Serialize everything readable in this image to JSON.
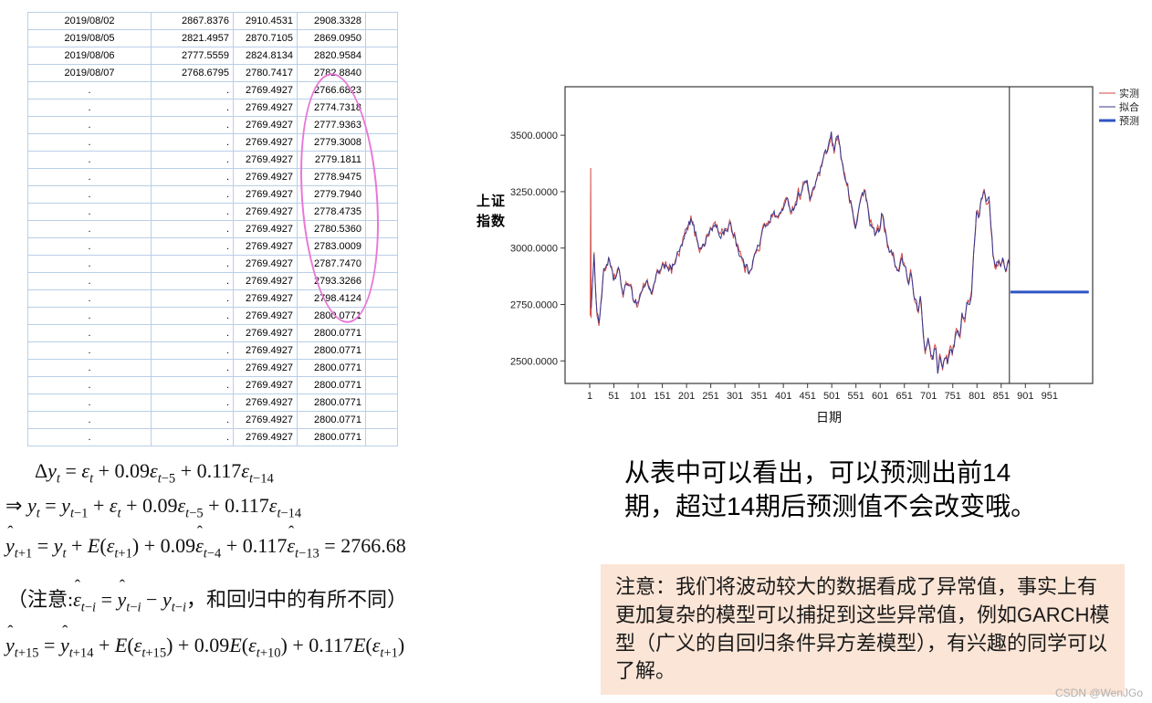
{
  "table": {
    "rows": [
      [
        "2019/08/02",
        "2867.8376",
        "2910.4531",
        "2908.3328"
      ],
      [
        "2019/08/05",
        "2821.4957",
        "2870.7105",
        "2869.0950"
      ],
      [
        "2019/08/06",
        "2777.5559",
        "2824.8134",
        "2820.9584"
      ],
      [
        "2019/08/07",
        "2768.6795",
        "2780.7417",
        "2782.8840"
      ],
      [
        ".",
        ".",
        "2769.4927",
        "2766.6823"
      ],
      [
        ".",
        ".",
        "2769.4927",
        "2774.7318"
      ],
      [
        ".",
        ".",
        "2769.4927",
        "2777.9363"
      ],
      [
        ".",
        ".",
        "2769.4927",
        "2779.3008"
      ],
      [
        ".",
        ".",
        "2769.4927",
        "2779.1811"
      ],
      [
        ".",
        ".",
        "2769.4927",
        "2778.9475"
      ],
      [
        ".",
        ".",
        "2769.4927",
        "2779.7940"
      ],
      [
        ".",
        ".",
        "2769.4927",
        "2778.4735"
      ],
      [
        ".",
        ".",
        "2769.4927",
        "2780.5360"
      ],
      [
        ".",
        ".",
        "2769.4927",
        "2783.0009"
      ],
      [
        ".",
        ".",
        "2769.4927",
        "2787.7470"
      ],
      [
        ".",
        ".",
        "2769.4927",
        "2793.3266"
      ],
      [
        ".",
        ".",
        "2769.4927",
        "2798.4124"
      ],
      [
        ".",
        ".",
        "2769.4927",
        "2800.0771"
      ],
      [
        ".",
        ".",
        "2769.4927",
        "2800.0771"
      ],
      [
        ".",
        ".",
        "2769.4927",
        "2800.0771"
      ],
      [
        ".",
        ".",
        "2769.4927",
        "2800.0771"
      ],
      [
        ".",
        ".",
        "2769.4927",
        "2800.0771"
      ],
      [
        ".",
        ".",
        "2769.4927",
        "2800.0771"
      ],
      [
        ".",
        ".",
        "2769.4927",
        "2800.0771"
      ],
      [
        ".",
        ".",
        "2769.4927",
        "2800.0771"
      ]
    ]
  },
  "colors": {
    "table_grid": "#b9cfe8",
    "ellipse_annotation": "#e878d8",
    "note_background": "#fbe5d6",
    "actual_line": "#d24a43",
    "fit_line": "#39398f",
    "forecast_line": "#2f55c4"
  },
  "formulas": {
    "f1": "Δ<i>y</i><sub><i>t</i></sub> = <i>ε</i><sub><i>t</i></sub> + 0.09<i>ε</i><sub><i>t</i>−5</sub> + 0.117<i>ε</i><sub><i>t</i>−14</sub>",
    "f2": "⇒ <i>y</i><sub><i>t</i></sub> = <i>y</i><sub><i>t</i>−1</sub> + <i>ε</i><sub><i>t</i></sub> + 0.09<i>ε</i><sub><i>t</i>−5</sub> + 0.117<i>ε</i><sub><i>t</i>−14</sub>",
    "f3": "<span class='hat'><i>y</i></span><sub><i>t</i>+1</sub> = <i>y</i><sub><i>t</i></sub> + <i>E</i>(<i>ε</i><sub><i>t</i>+1</sub>) + 0.09<span class='hat'><i>ε</i></span><sub><i>t</i>−4</sub> + 0.117<span class='hat'><i>ε</i></span><sub><i>t</i>−13</sub> = 2766.68",
    "f4": "（注意:<span class='hat'><i>ε</i></span><sub><i>t</i>−<i>i</i></sub> = <span class='hat'><i>y</i></span><sub><i>t</i>−<i>i</i></sub> − <i>y</i><sub><i>t</i>−<i>i</i></sub>，和回归中的有所不同）",
    "f5": "<span class='hat'><i>y</i></span><sub><i>t</i>+15</sub> = <span class='hat'><i>y</i></span><sub><i>t</i>+14</sub> + <i>E</i>(<i>ε</i><sub><i>t</i>+15</sub>) + 0.09<i>E</i>(<i>ε</i><sub><i>t</i>+10</sub>) + 0.117<i>E</i>(<i>ε</i><sub><i>t</i>+1</sub>)"
  },
  "explain_text": "从表中可以看出，可以预测出前14期，超过14期后预测值不会改变哦。",
  "note_text": "注意：我们将波动较大的数据看成了异常值，事实上有更加复杂的模型可以捕捉到这些异常值，例如GARCH模型（广义的自回归条件异方差模型），有兴趣的同学可以了解。",
  "watermark": "CSDN @WenJGo",
  "chart_data": {
    "type": "line",
    "title": "",
    "ylabel": "上证指数",
    "xlabel": "日期",
    "yticks": [
      "3500.0000",
      "3250.0000",
      "3000.0000",
      "2750.0000",
      "2500.0000"
    ],
    "xticks": [
      1,
      51,
      101,
      151,
      201,
      251,
      301,
      351,
      401,
      451,
      501,
      551,
      601,
      651,
      701,
      751,
      801,
      851,
      901,
      951
    ],
    "ylim": [
      2400,
      3715
    ],
    "xlim": [
      -50,
      1040
    ],
    "legend": [
      {
        "label": "实测",
        "color": "#d24a43",
        "width": 1
      },
      {
        "label": "拟合",
        "color": "#39398f",
        "width": 1
      },
      {
        "label": "预测",
        "color": "#2f55c4",
        "width": 3
      }
    ],
    "forecast_start_x": 868,
    "forecast_value": 2805,
    "actual_spike": {
      "x": 3,
      "from": 2700,
      "to": 3355
    },
    "series_keypoints": {
      "x": [
        2,
        10,
        15,
        20,
        30,
        40,
        50,
        60,
        70,
        80,
        90,
        100,
        110,
        120,
        130,
        140,
        150,
        160,
        170,
        180,
        190,
        200,
        210,
        220,
        230,
        240,
        250,
        260,
        270,
        280,
        290,
        300,
        310,
        320,
        330,
        340,
        350,
        360,
        370,
        380,
        390,
        400,
        410,
        420,
        430,
        440,
        450,
        455,
        460,
        470,
        480,
        490,
        500,
        505,
        510,
        515,
        520,
        530,
        540,
        550,
        555,
        560,
        570,
        575,
        580,
        590,
        600,
        605,
        610,
        620,
        630,
        640,
        645,
        650,
        660,
        665,
        670,
        680,
        685,
        690,
        695,
        700,
        705,
        710,
        715,
        720,
        725,
        730,
        735,
        740,
        745,
        750,
        755,
        760,
        765,
        770,
        775,
        780,
        785,
        790,
        795,
        800,
        805,
        810,
        815,
        820,
        825,
        830,
        835,
        840,
        845,
        850,
        855,
        860,
        865,
        868
      ],
      "y": [
        2680,
        2950,
        2750,
        2670,
        2900,
        2950,
        2850,
        2900,
        2800,
        2850,
        2780,
        2760,
        2820,
        2850,
        2800,
        2880,
        2900,
        2930,
        2900,
        2960,
        3000,
        3060,
        3120,
        3060,
        3000,
        3030,
        3080,
        3100,
        3050,
        3080,
        3100,
        3060,
        2980,
        2930,
        2900,
        2960,
        3010,
        3080,
        3120,
        3160,
        3130,
        3180,
        3200,
        3170,
        3220,
        3270,
        3300,
        3200,
        3250,
        3300,
        3360,
        3420,
        3500,
        3420,
        3480,
        3520,
        3400,
        3300,
        3200,
        3080,
        3150,
        3220,
        3250,
        3180,
        3120,
        3060,
        3080,
        3150,
        3100,
        2990,
        2950,
        2900,
        2960,
        2920,
        2850,
        2900,
        2780,
        2720,
        2780,
        2620,
        2550,
        2620,
        2560,
        2500,
        2560,
        2460,
        2520,
        2480,
        2540,
        2500,
        2560,
        2520,
        2580,
        2630,
        2600,
        2700,
        2680,
        2760,
        2740,
        2820,
        3000,
        3150,
        3100,
        3220,
        3260,
        3200,
        3250,
        3100,
        2950,
        2900,
        2950,
        2900,
        2960,
        2900,
        2940,
        2920
      ]
    }
  }
}
